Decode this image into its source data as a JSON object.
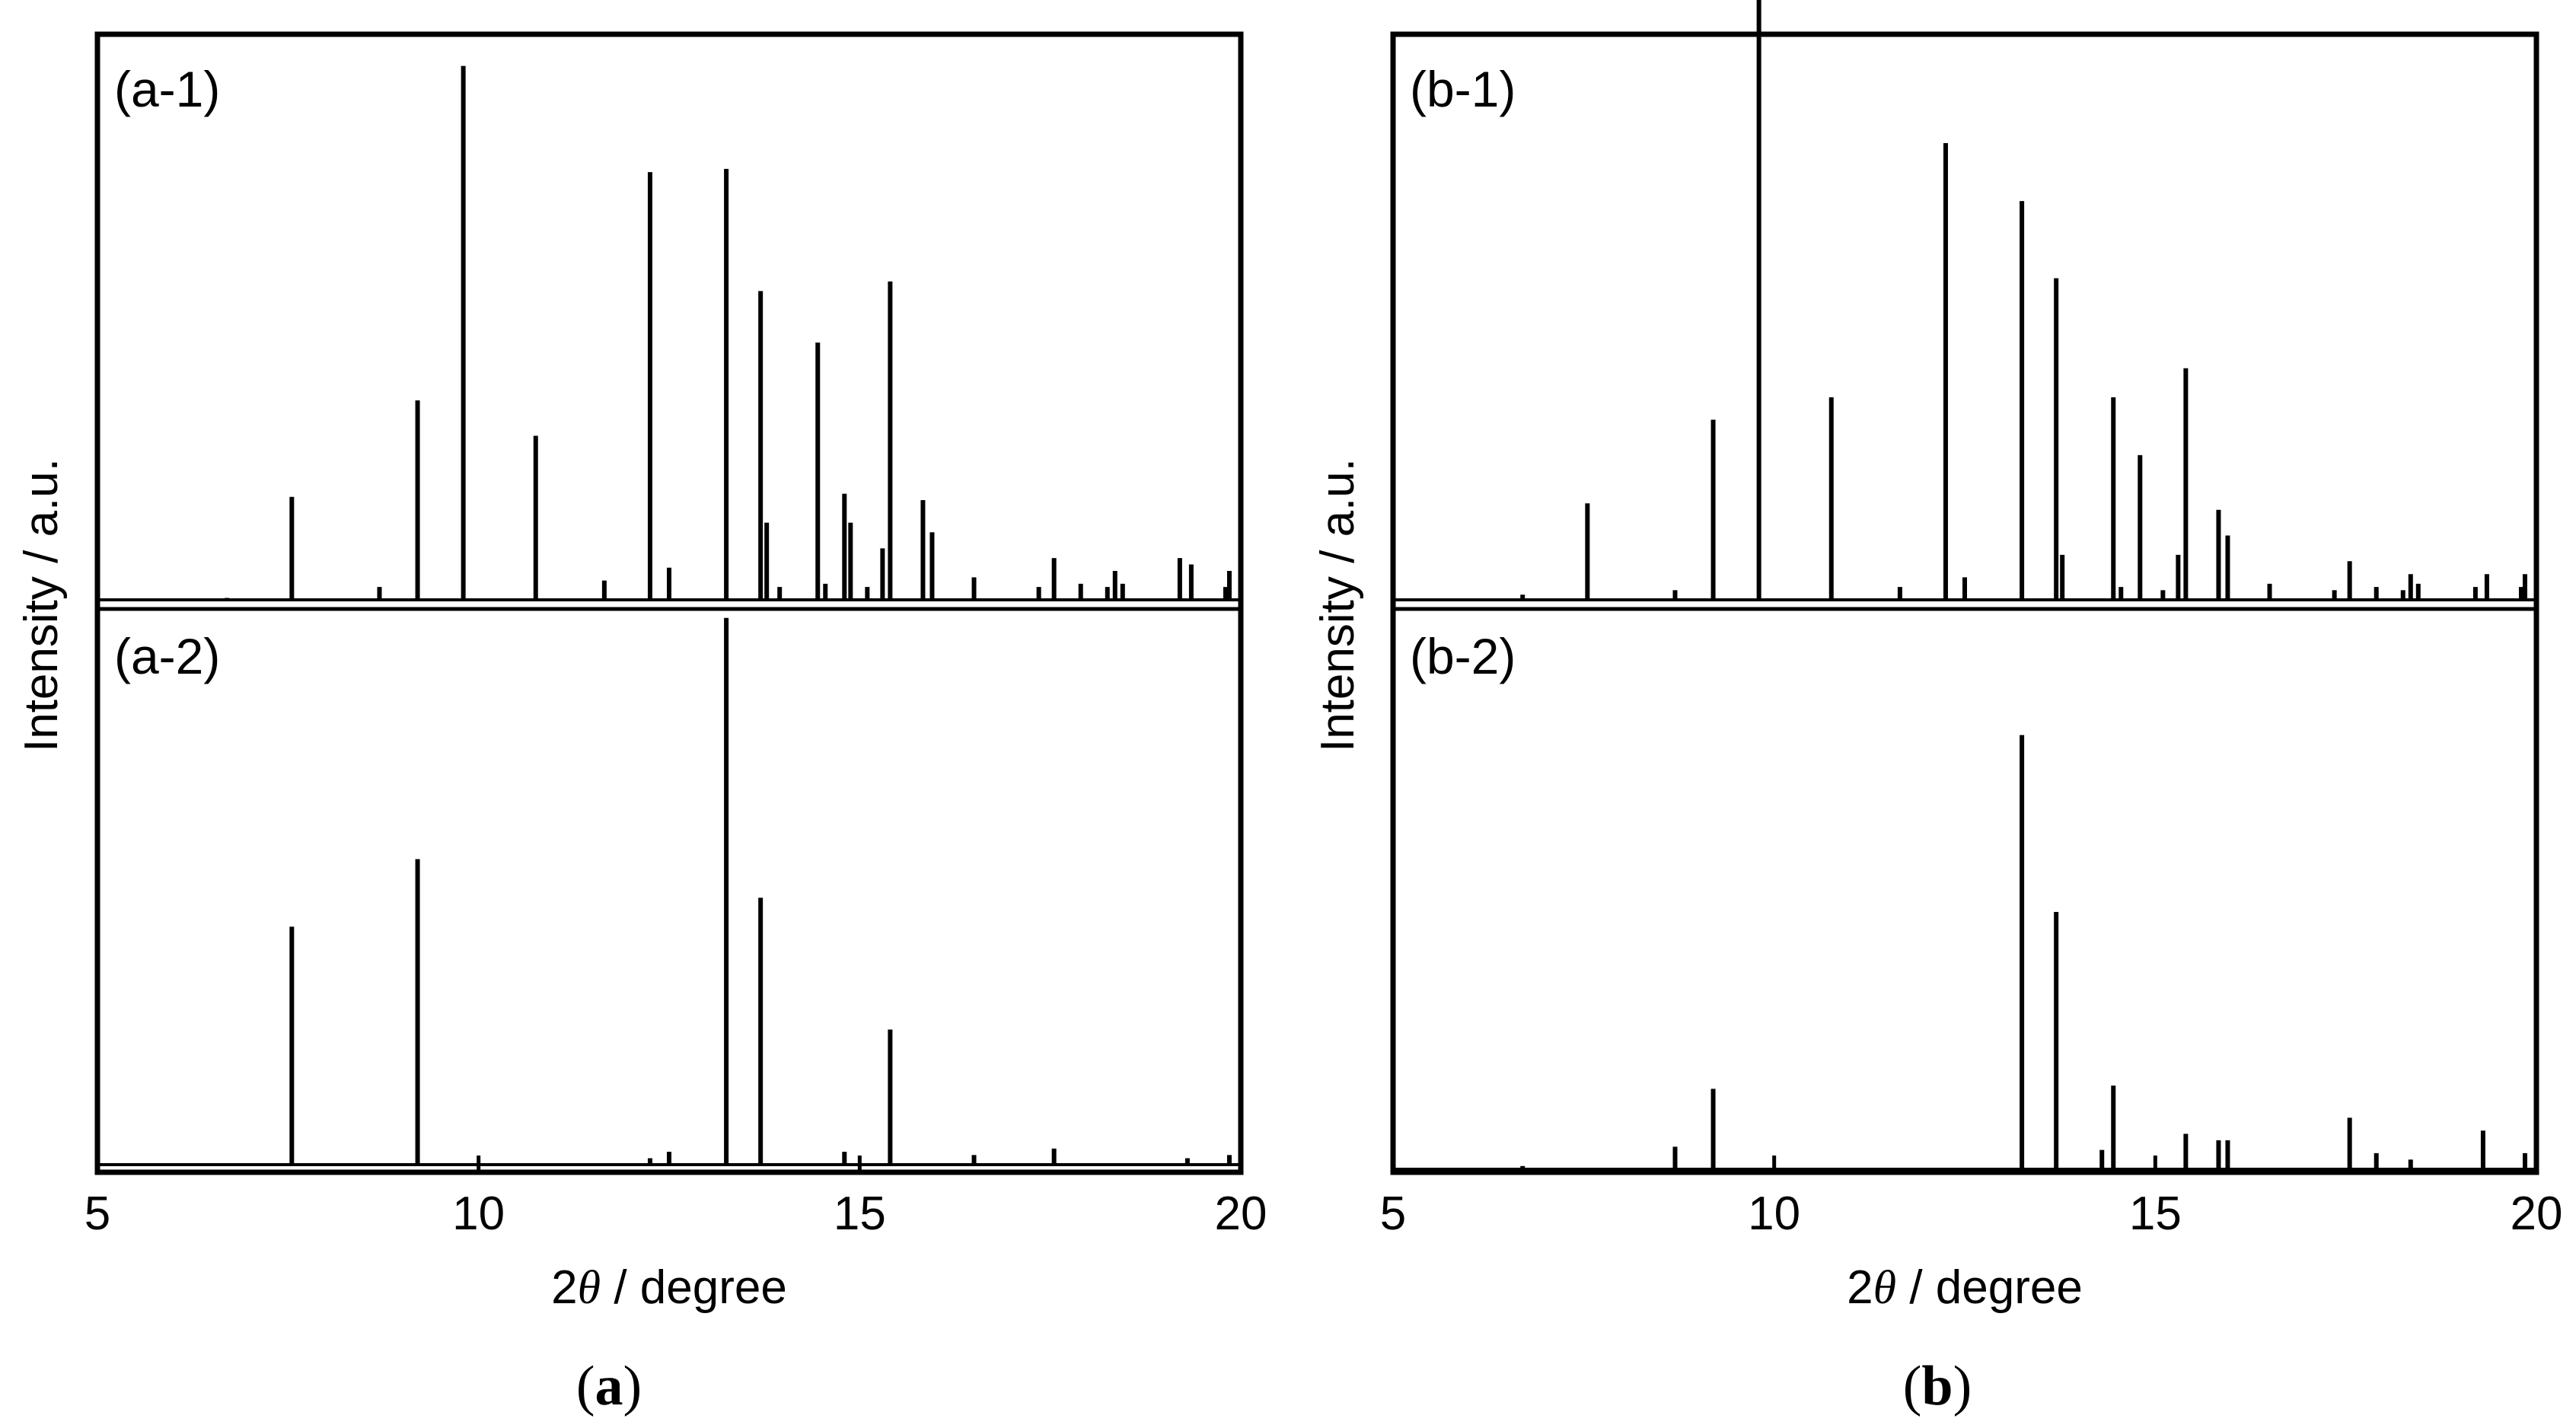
{
  "figure_captions": [
    {
      "paren_open": "(",
      "letter": "a",
      "paren_close": ")"
    },
    {
      "paren_open": "(",
      "letter": "b",
      "paren_close": ")"
    }
  ],
  "chart_data": [
    {
      "type": "line",
      "id": "a",
      "xlabel_prefix": "2",
      "xlabel_symbol": "θ",
      "xlabel_suffix": " / degree",
      "ylabel": "Intensity / a.u.",
      "xlim": [
        5,
        20
      ],
      "xticks": [
        "5",
        "10",
        "15",
        "20"
      ],
      "grid": false,
      "subplots": [
        {
          "label": "(a-1)",
          "peaks": [
            [
              6.7,
              0.3
            ],
            [
              7.55,
              16
            ],
            [
              8.7,
              2
            ],
            [
              9.2,
              31
            ],
            [
              9.8,
              83
            ],
            [
              10.75,
              25.5
            ],
            [
              11.65,
              3
            ],
            [
              12.25,
              66.5
            ],
            [
              12.5,
              5
            ],
            [
              13.25,
              67
            ],
            [
              13.7,
              48
            ],
            [
              13.78,
              12
            ],
            [
              13.95,
              2
            ],
            [
              14.45,
              40
            ],
            [
              14.55,
              2.5
            ],
            [
              14.8,
              16.5
            ],
            [
              14.88,
              12
            ],
            [
              15.1,
              2
            ],
            [
              15.3,
              8
            ],
            [
              15.4,
              49.5
            ],
            [
              15.83,
              15.5
            ],
            [
              15.95,
              10.5
            ],
            [
              16.5,
              3.5
            ],
            [
              17.35,
              2
            ],
            [
              17.55,
              6.5
            ],
            [
              17.9,
              2.5
            ],
            [
              18.25,
              2
            ],
            [
              18.35,
              4.5
            ],
            [
              18.45,
              2.5
            ],
            [
              19.2,
              6.5
            ],
            [
              19.35,
              5.5
            ],
            [
              19.8,
              2
            ],
            [
              19.85,
              4.5
            ]
          ]
        },
        {
          "label": "(a-2)",
          "peaks": [
            [
              7.55,
              37
            ],
            [
              9.2,
              47.5
            ],
            [
              12.25,
              1
            ],
            [
              12.5,
              2
            ],
            [
              13.25,
              85
            ],
            [
              13.7,
              41.5
            ],
            [
              14.8,
              2
            ],
            [
              15.4,
              21
            ],
            [
              16.5,
              1.5
            ],
            [
              17.55,
              2.5
            ],
            [
              19.3,
              1
            ],
            [
              19.85,
              1.5
            ]
          ]
        }
      ]
    },
    {
      "type": "line",
      "id": "b",
      "xlabel_prefix": "2",
      "xlabel_symbol": "θ",
      "xlabel_suffix": " / degree",
      "ylabel": "Intensity / a.u.",
      "xlim": [
        5,
        20
      ],
      "xticks": [
        "5",
        "10",
        "15",
        "20"
      ],
      "grid": false,
      "subplots": [
        {
          "label": "(b-1)",
          "peaks": [
            [
              6.7,
              0.8
            ],
            [
              7.55,
              15
            ],
            [
              8.7,
              1.5
            ],
            [
              9.2,
              28
            ],
            [
              9.8,
              94
            ],
            [
              10.75,
              31.5
            ],
            [
              11.65,
              2
            ],
            [
              12.25,
              71
            ],
            [
              12.5,
              3.5
            ],
            [
              13.25,
              62
            ],
            [
              13.7,
              50
            ],
            [
              13.78,
              7
            ],
            [
              14.45,
              31.5
            ],
            [
              14.55,
              2
            ],
            [
              14.8,
              22.5
            ],
            [
              15.1,
              1.5
            ],
            [
              15.3,
              7
            ],
            [
              15.4,
              36
            ],
            [
              15.83,
              14
            ],
            [
              15.95,
              10
            ],
            [
              16.5,
              2.5
            ],
            [
              17.35,
              1.5
            ],
            [
              17.55,
              6
            ],
            [
              17.9,
              2
            ],
            [
              18.25,
              1.5
            ],
            [
              18.35,
              4
            ],
            [
              18.45,
              2.5
            ],
            [
              19.2,
              2
            ],
            [
              19.35,
              4
            ],
            [
              19.8,
              2
            ],
            [
              19.85,
              4
            ]
          ]
        },
        {
          "label": "(b-2)",
          "peaks": [
            [
              6.7,
              0.5
            ],
            [
              8.7,
              3.5
            ],
            [
              9.2,
              12.5
            ],
            [
              13.25,
              67.5
            ],
            [
              13.7,
              40
            ],
            [
              14.3,
              3
            ],
            [
              14.45,
              13
            ],
            [
              15.4,
              5.5
            ],
            [
              15.83,
              4.5
            ],
            [
              15.95,
              4.5
            ],
            [
              17.55,
              8
            ],
            [
              17.9,
              2.5
            ],
            [
              18.35,
              1.5
            ],
            [
              19.3,
              6
            ],
            [
              19.85,
              2.5
            ]
          ]
        }
      ]
    }
  ]
}
